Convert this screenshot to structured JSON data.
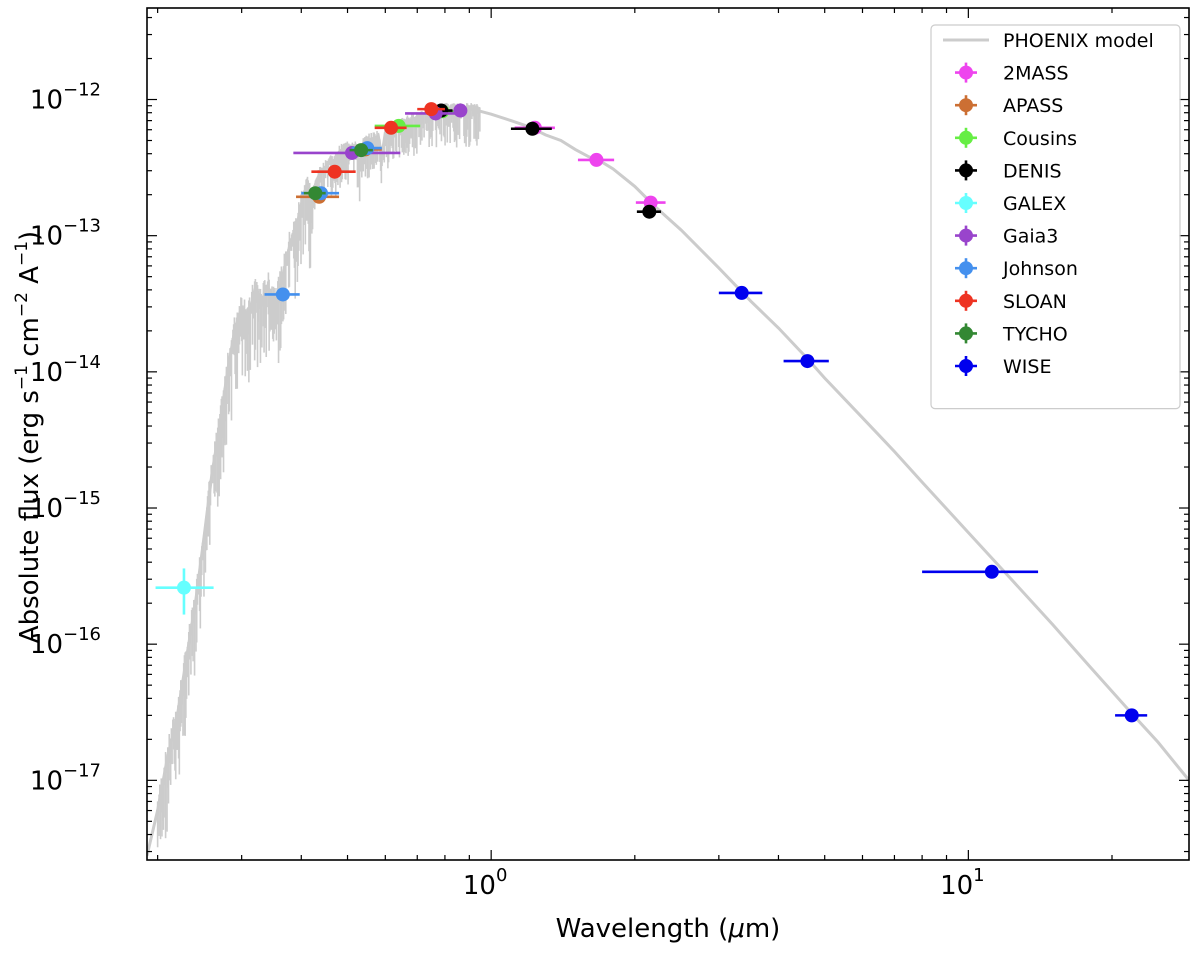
{
  "chart_data": {
    "type": "scatter",
    "title": "",
    "xlabel": "Wavelength (",
    "xlabel_symbol": "μ",
    "xlabel_unit": "m)",
    "ylabel": "Absolute flux (erg s",
    "ylabel_mid": " cm",
    "ylabel_a": " A",
    "ylabel_close": ")",
    "ylabel_exp1": "−1",
    "ylabel_exp2": "−2",
    "ylabel_exp3": "−1",
    "xscale": "log",
    "yscale": "log",
    "xlim": [
      0.19,
      29.0
    ],
    "ylim": [
      2.6e-18,
      4.7e-12
    ],
    "x_ticks": [
      {
        "value": 1,
        "base": "10",
        "exp": "0"
      },
      {
        "value": 10,
        "base": "10",
        "exp": "1"
      }
    ],
    "y_ticks": [
      {
        "value": 1e-17,
        "base": "10",
        "exp": "−17"
      },
      {
        "value": 1e-16,
        "base": "10",
        "exp": "−16"
      },
      {
        "value": 1e-15,
        "base": "10",
        "exp": "−15"
      },
      {
        "value": 1e-14,
        "base": "10",
        "exp": "−14"
      },
      {
        "value": 1e-13,
        "base": "10",
        "exp": "−13"
      },
      {
        "value": 1e-12,
        "base": "10",
        "exp": "−12"
      }
    ],
    "legend_position": "top-right",
    "model": {
      "name": "PHOENIX model",
      "color": "#cccccc",
      "points": [
        [
          0.19,
          2.8e-18
        ],
        [
          0.2,
          6e-18
        ],
        [
          0.21,
          1.5e-17
        ],
        [
          0.22,
          3e-17
        ],
        [
          0.23,
          8e-17
        ],
        [
          0.24,
          2e-16
        ],
        [
          0.25,
          6e-16
        ],
        [
          0.26,
          1.8e-15
        ],
        [
          0.27,
          4e-15
        ],
        [
          0.28,
          1e-14
        ],
        [
          0.29,
          2e-14
        ],
        [
          0.3,
          3e-14
        ],
        [
          0.31,
          2.5e-14
        ],
        [
          0.32,
          4e-14
        ],
        [
          0.33,
          3.2e-14
        ],
        [
          0.34,
          4.2e-14
        ],
        [
          0.35,
          3.5e-14
        ],
        [
          0.36,
          4e-14
        ],
        [
          0.37,
          6e-14
        ],
        [
          0.38,
          9e-14
        ],
        [
          0.39,
          1.1e-13
        ],
        [
          0.4,
          1.7e-13
        ],
        [
          0.41,
          2.3e-13
        ],
        [
          0.42,
          1.8e-13
        ],
        [
          0.43,
          2.5e-13
        ],
        [
          0.44,
          3e-13
        ],
        [
          0.45,
          3.2e-13
        ],
        [
          0.46,
          3.6e-13
        ],
        [
          0.47,
          3.5e-13
        ],
        [
          0.48,
          4.1e-13
        ],
        [
          0.5,
          4.5e-13
        ],
        [
          0.52,
          4.6e-13
        ],
        [
          0.53,
          3.2e-13
        ],
        [
          0.54,
          4.8e-13
        ],
        [
          0.56,
          5.1e-13
        ],
        [
          0.58,
          5.4e-13
        ],
        [
          0.59,
          3.8e-13
        ],
        [
          0.6,
          5.7e-13
        ],
        [
          0.62,
          6.1e-13
        ],
        [
          0.64,
          6.5e-13
        ],
        [
          0.66,
          6.9e-13
        ],
        [
          0.68,
          7.1e-13
        ],
        [
          0.7,
          7.4e-13
        ],
        [
          0.72,
          7.8e-13
        ],
        [
          0.75,
          8.2e-13
        ],
        [
          0.78,
          8.4e-13
        ],
        [
          0.8,
          8.5e-13
        ],
        [
          0.85,
          8.4e-13
        ],
        [
          0.9,
          8.5e-13
        ],
        [
          0.95,
          8.2e-13
        ],
        [
          1.0,
          7.8e-13
        ],
        [
          1.1,
          7e-13
        ],
        [
          1.2,
          6.3e-13
        ],
        [
          1.3,
          5.5e-13
        ],
        [
          1.4,
          5e-13
        ],
        [
          1.5,
          4.3e-13
        ],
        [
          1.6,
          3.8e-13
        ],
        [
          1.7,
          3.5e-13
        ],
        [
          1.8,
          3.1e-13
        ],
        [
          2.0,
          2.3e-13
        ],
        [
          2.2,
          1.65e-13
        ],
        [
          2.5,
          1.1e-13
        ],
        [
          3.0,
          5.8e-14
        ],
        [
          3.5,
          3.3e-14
        ],
        [
          4.0,
          2.1e-14
        ],
        [
          4.6,
          1.25e-14
        ],
        [
          5.0,
          9e-15
        ],
        [
          6.0,
          4.6e-15
        ],
        [
          7.0,
          2.6e-15
        ],
        [
          8.0,
          1.55e-15
        ],
        [
          10.0,
          6.6e-16
        ],
        [
          12.0,
          3.3e-16
        ],
        [
          15.0,
          1.4e-16
        ],
        [
          18.0,
          6.8e-17
        ],
        [
          20.0,
          4.5e-17
        ],
        [
          22.0,
          3.1e-17
        ],
        [
          25.0,
          1.9e-17
        ],
        [
          29.0,
          1e-17
        ]
      ]
    },
    "series": [
      {
        "name": "2MASS",
        "color": "#ee44ee",
        "points": [
          {
            "x": 1.235,
            "y": 6.2e-13,
            "xerr": [
              1.12,
              1.36
            ]
          },
          {
            "x": 1.662,
            "y": 3.6e-13,
            "xerr": [
              1.52,
              1.81
            ]
          },
          {
            "x": 2.159,
            "y": 1.75e-13,
            "xerr": [
              2.01,
              2.32
            ]
          }
        ]
      },
      {
        "name": "APASS",
        "color": "#cc6f33",
        "points": [
          {
            "x": 0.436,
            "y": 1.93e-13,
            "xerr": [
              0.39,
              0.48
            ]
          },
          {
            "x": 0.545,
            "y": 4.3e-13,
            "xerr": [
              0.5,
              0.59
            ]
          }
        ]
      },
      {
        "name": "Cousins",
        "color": "#66ee44",
        "points": [
          {
            "x": 0.64,
            "y": 6.4e-13,
            "xerr": [
              0.57,
              0.71
            ]
          },
          {
            "x": 0.79,
            "y": 8.2e-13,
            "xerr": [
              0.74,
              0.84
            ]
          }
        ]
      },
      {
        "name": "DENIS",
        "color": "#000000",
        "points": [
          {
            "x": 0.786,
            "y": 8.3e-13,
            "xerr": [
              0.74,
              0.83
            ]
          },
          {
            "x": 1.22,
            "y": 6.1e-13,
            "xerr": [
              1.1,
              1.34
            ]
          },
          {
            "x": 2.145,
            "y": 1.5e-13,
            "xerr": [
              2.02,
              2.27
            ]
          }
        ]
      },
      {
        "name": "GALEX",
        "color": "#66ffff",
        "points": [
          {
            "x": 0.2271,
            "y": 2.6e-16,
            "xerr": [
              0.198,
              0.262
            ],
            "yerr": [
              1.65e-16,
              3.6e-16
            ]
          }
        ]
      },
      {
        "name": "Gaia3",
        "color": "#9944cc",
        "points": [
          {
            "x": 0.511,
            "y": 4.05e-13,
            "xerr": [
              0.385,
              0.645
            ]
          },
          {
            "x": 0.765,
            "y": 7.9e-13,
            "xerr": [
              0.66,
              0.865
            ]
          },
          {
            "x": 0.862,
            "y": 8.3e-13,
            "xerr": [
              0.842,
              0.882
            ]
          }
        ]
      },
      {
        "name": "Johnson",
        "color": "#4490ee",
        "points": [
          {
            "x": 0.366,
            "y": 3.7e-14,
            "xerr": [
              0.335,
              0.397
            ]
          },
          {
            "x": 0.44,
            "y": 2.05e-13,
            "xerr": [
              0.4,
              0.48
            ]
          },
          {
            "x": 0.55,
            "y": 4.4e-13,
            "xerr": [
              0.51,
              0.59
            ]
          }
        ]
      },
      {
        "name": "SLOAN",
        "color": "#ee3322",
        "points": [
          {
            "x": 0.47,
            "y": 2.95e-13,
            "xerr": [
              0.42,
              0.52
            ]
          },
          {
            "x": 0.617,
            "y": 6.2e-13,
            "xerr": [
              0.57,
              0.665
            ]
          },
          {
            "x": 0.749,
            "y": 8.5e-13,
            "xerr": [
              0.7,
              0.8
            ]
          }
        ]
      },
      {
        "name": "TYCHO",
        "color": "#338833",
        "points": [
          {
            "x": 0.428,
            "y": 2.05e-13,
            "xerr": [
              0.405,
              0.45
            ]
          },
          {
            "x": 0.534,
            "y": 4.25e-13,
            "xerr": [
              0.505,
              0.565
            ]
          }
        ]
      },
      {
        "name": "WISE",
        "color": "#0000ee",
        "points": [
          {
            "x": 3.35,
            "y": 3.8e-14,
            "xerr": [
              3.0,
              3.7
            ]
          },
          {
            "x": 4.6,
            "y": 1.2e-14,
            "xerr": [
              4.1,
              5.1
            ]
          },
          {
            "x": 11.2,
            "y": 3.4e-16,
            "xerr": [
              8.0,
              14.0
            ]
          },
          {
            "x": 22.0,
            "y": 3e-17,
            "xerr": [
              20.3,
              23.7
            ]
          }
        ]
      }
    ]
  }
}
